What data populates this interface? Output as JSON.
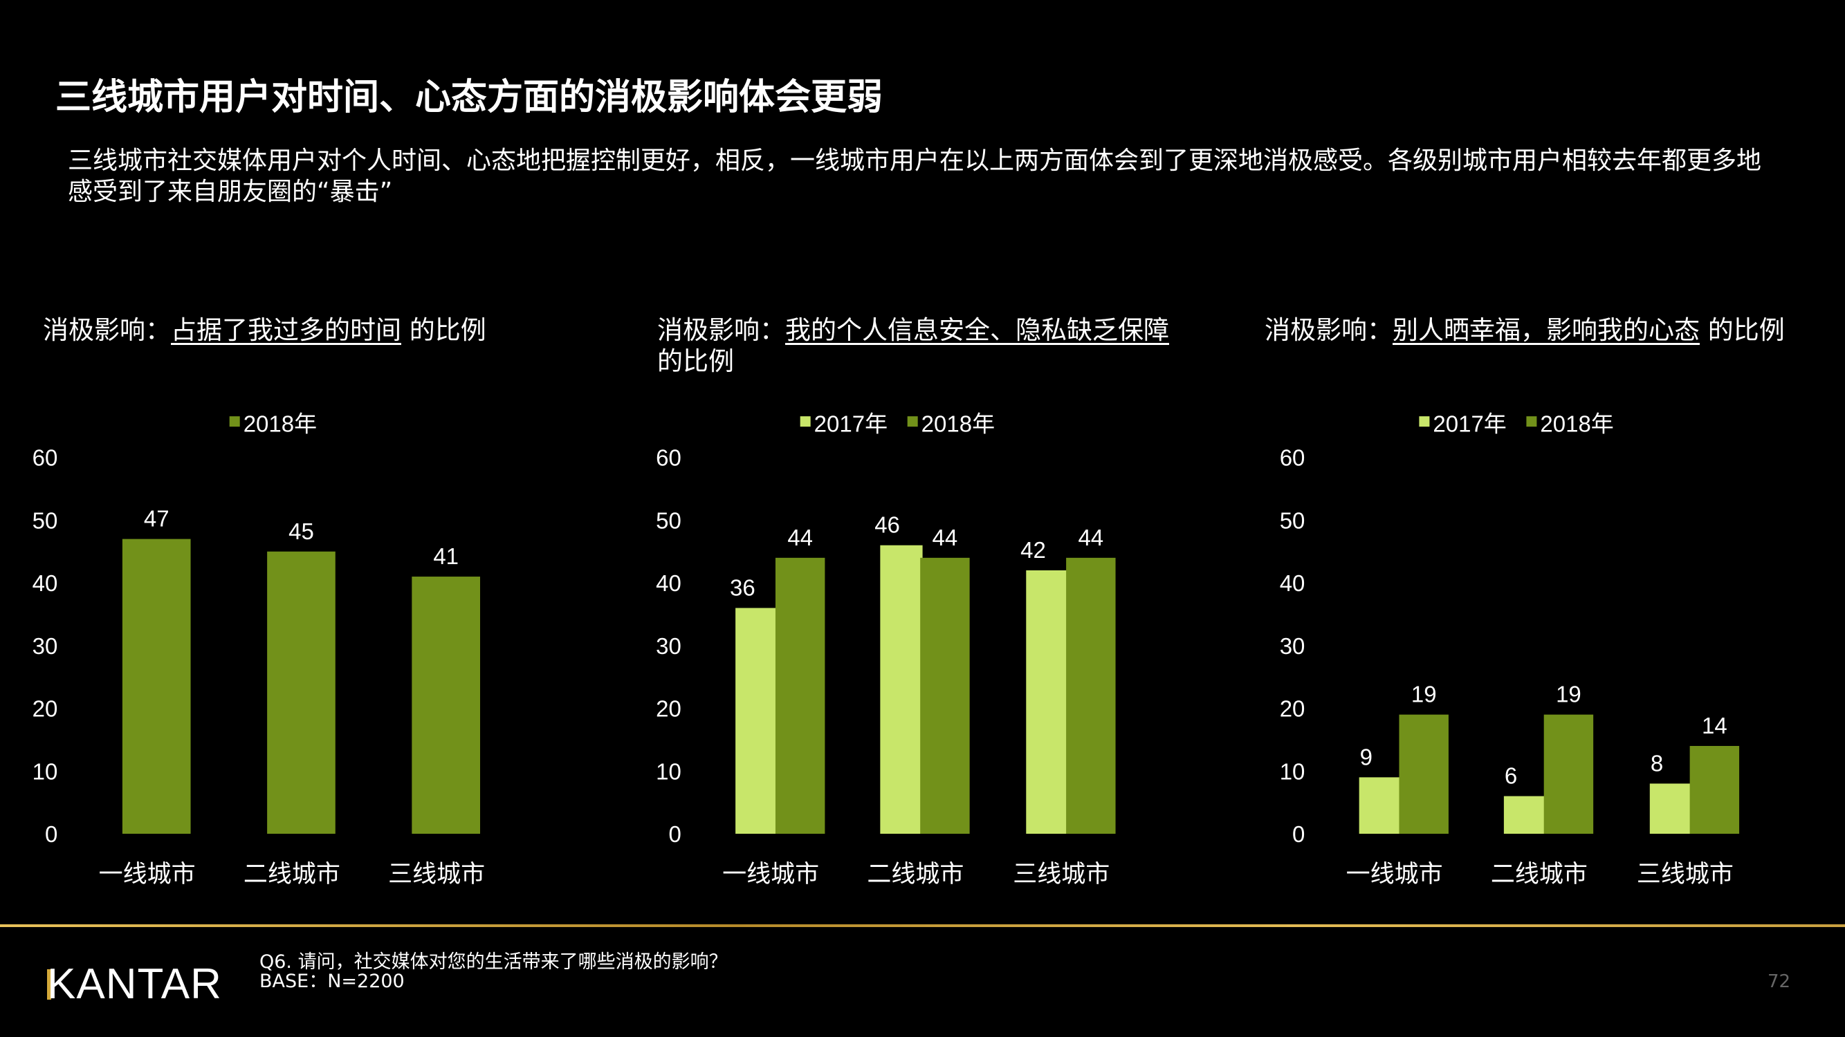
{
  "title": "三线城市用户对时间、心态方面的消极影响体会更弱",
  "subtitle": "三线城市社交媒体用户对个人时间、心态地把握控制更好，相反，一线城市用户在以上两方面体会到了更深地消极感受。各级别城市用户相较去年都更多地感受到了来自朋友圈的“暴击”",
  "colors": {
    "y2017": "#c8e66a",
    "y2018": "#72911a",
    "background": "#000000",
    "accent_line": "#d4a93a"
  },
  "chart_data": [
    {
      "type": "bar",
      "title_prefix": "消极影响：",
      "title_underlined": "占据了我过多的时间",
      "title_suffix": " 的比例",
      "categories": [
        "一线城市",
        "二线城市",
        "三线城市"
      ],
      "series": [
        {
          "name": "2018年",
          "values": [
            47,
            45,
            41
          ]
        }
      ],
      "ylim": [
        0,
        60
      ],
      "yticks": [
        "0",
        "10",
        "20",
        "30",
        "40",
        "50",
        "60"
      ],
      "grid": false,
      "legend": "top"
    },
    {
      "type": "bar",
      "title_prefix": "消极影响：",
      "title_underlined": "我的个人信息安全、隐私缺乏保障",
      "title_suffix": "的比例",
      "categories": [
        "一线城市",
        "二线城市",
        "三线城市"
      ],
      "series": [
        {
          "name": "2017年",
          "values": [
            36,
            46,
            42
          ]
        },
        {
          "name": "2018年",
          "values": [
            44,
            44,
            44
          ]
        }
      ],
      "ylim": [
        0,
        60
      ],
      "yticks": [
        "0",
        "10",
        "20",
        "30",
        "40",
        "50",
        "60"
      ],
      "grid": false,
      "legend": "top"
    },
    {
      "type": "bar",
      "title_prefix": "消极影响：",
      "title_underlined": "别人晒幸福，影响我的心态",
      "title_suffix": " 的比例",
      "categories": [
        "一线城市",
        "二线城市",
        "三线城市"
      ],
      "series": [
        {
          "name": "2017年",
          "values": [
            9,
            6,
            8
          ]
        },
        {
          "name": "2018年",
          "values": [
            19,
            19,
            14
          ]
        }
      ],
      "ylim": [
        0,
        60
      ],
      "yticks": [
        "0",
        "10",
        "20",
        "30",
        "40",
        "50",
        "60"
      ],
      "grid": false,
      "legend": "top"
    }
  ],
  "footer": {
    "logo": "KANTAR",
    "question": "Q6. 请问，社交媒体对您的生活带来了哪些消极的影响？",
    "base": "BASE：N=2200",
    "page_number": "72"
  }
}
